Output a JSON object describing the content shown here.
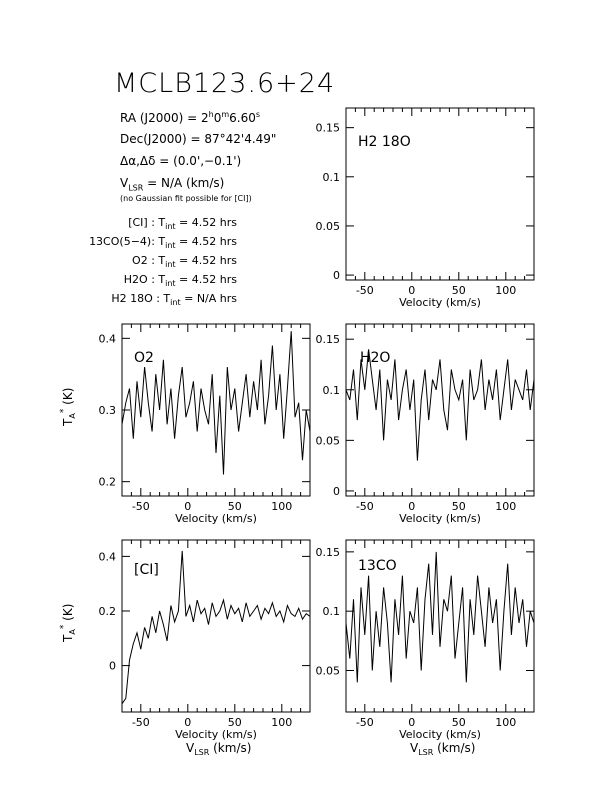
{
  "source_name": "MCLB123.6+24",
  "coords": {
    "ra_label": "RA (J2000)",
    "ra_h": "2",
    "ra_m": "0",
    "ra_s": "6.60",
    "dec_label": "Dec(J2000)",
    "dec_value": "87°42'4.49\"",
    "offset_label": "Δα,Δδ",
    "offset_value": "(0.0',−0.1')",
    "vlsr_value": "N/A  (km/s)",
    "vlsr_note": "(no Gaussian fit possible for [CI])"
  },
  "integration": {
    "rows": [
      {
        "line": "[CI]",
        "value": "4.52 hrs"
      },
      {
        "line": "13CO(5−4)",
        "value": "4.52 hrs"
      },
      {
        "line": "O2",
        "value": "4.52 hrs"
      },
      {
        "line": "H2O",
        "value": "4.52 hrs"
      },
      {
        "line": "H2 18O",
        "value": "N/A hrs"
      }
    ]
  },
  "axis_text": {
    "velocity": "Velocity (km/s)",
    "vlsr": "V",
    "vlsr_sub": "LSR",
    "vlsr_unit": "(km/s)",
    "ta": "T",
    "ta_sub": "A",
    "ta_sup": "*",
    "ta_unit": "(K)"
  },
  "chart_data": [
    {
      "panel": "H2 18O",
      "type": "line",
      "label": "H2 18O",
      "xlim": [
        -70,
        130
      ],
      "ylim": [
        -0.005,
        0.17
      ],
      "xticks": [
        -50,
        0,
        50,
        100
      ],
      "yticks": [
        0,
        0.05,
        0.1,
        0.15
      ],
      "ytick_labels": [
        "0",
        "0.05",
        "0.1",
        "0.15"
      ],
      "x": [],
      "y": []
    },
    {
      "panel": "O2",
      "type": "line",
      "label": "O2",
      "xlim": [
        -70,
        130
      ],
      "ylim": [
        0.18,
        0.42
      ],
      "xticks": [
        -50,
        0,
        50,
        100
      ],
      "yticks": [
        0.2,
        0.3,
        0.4
      ],
      "ytick_labels": [
        "0.2",
        "0.3",
        "0.4"
      ],
      "x": [
        -70,
        -66,
        -62,
        -58,
        -54,
        -50,
        -46,
        -42,
        -38,
        -34,
        -30,
        -26,
        -22,
        -18,
        -14,
        -10,
        -6,
        -2,
        2,
        6,
        10,
        14,
        18,
        22,
        26,
        30,
        34,
        38,
        42,
        46,
        50,
        54,
        58,
        62,
        66,
        70,
        74,
        78,
        82,
        86,
        90,
        94,
        98,
        102,
        106,
        110,
        114,
        118,
        122,
        126,
        130
      ],
      "y": [
        0.28,
        0.31,
        0.33,
        0.26,
        0.34,
        0.29,
        0.36,
        0.31,
        0.27,
        0.35,
        0.3,
        0.37,
        0.28,
        0.33,
        0.26,
        0.32,
        0.36,
        0.29,
        0.31,
        0.34,
        0.27,
        0.33,
        0.3,
        0.28,
        0.35,
        0.24,
        0.32,
        0.21,
        0.36,
        0.3,
        0.33,
        0.27,
        0.31,
        0.35,
        0.29,
        0.34,
        0.3,
        0.37,
        0.28,
        0.32,
        0.39,
        0.3,
        0.35,
        0.26,
        0.33,
        0.41,
        0.29,
        0.31,
        0.23,
        0.3,
        0.27
      ]
    },
    {
      "panel": "H2O",
      "type": "line",
      "label": "H2O",
      "xlim": [
        -70,
        130
      ],
      "ylim": [
        -0.005,
        0.165
      ],
      "xticks": [
        -50,
        0,
        50,
        100
      ],
      "yticks": [
        0,
        0.05,
        0.1,
        0.15
      ],
      "ytick_labels": [
        "0",
        "0.05",
        "0.1",
        "0.15"
      ],
      "x": [
        -70,
        -66,
        -62,
        -58,
        -54,
        -50,
        -46,
        -42,
        -38,
        -34,
        -30,
        -26,
        -22,
        -18,
        -14,
        -10,
        -6,
        -2,
        2,
        6,
        10,
        14,
        18,
        22,
        26,
        30,
        34,
        38,
        42,
        46,
        50,
        54,
        58,
        62,
        66,
        70,
        74,
        78,
        82,
        86,
        90,
        94,
        98,
        102,
        106,
        110,
        114,
        118,
        122,
        126,
        130
      ],
      "y": [
        0.1,
        0.09,
        0.12,
        0.07,
        0.13,
        0.1,
        0.14,
        0.11,
        0.08,
        0.12,
        0.05,
        0.11,
        0.09,
        0.13,
        0.07,
        0.1,
        0.12,
        0.08,
        0.11,
        0.03,
        0.09,
        0.12,
        0.07,
        0.11,
        0.1,
        0.13,
        0.08,
        0.06,
        0.12,
        0.1,
        0.09,
        0.11,
        0.05,
        0.12,
        0.09,
        0.1,
        0.13,
        0.08,
        0.11,
        0.09,
        0.12,
        0.07,
        0.1,
        0.13,
        0.08,
        0.11,
        0.1,
        0.09,
        0.12,
        0.08,
        0.11
      ]
    },
    {
      "panel": "[CI]",
      "type": "line",
      "label": "[CI]",
      "xlim": [
        -70,
        130
      ],
      "ylim": [
        -0.17,
        0.46
      ],
      "xticks": [
        -50,
        0,
        50,
        100
      ],
      "yticks": [
        0,
        0.2,
        0.4
      ],
      "ytick_labels": [
        "0",
        "0.2",
        "0.4"
      ],
      "x": [
        -70,
        -66,
        -62,
        -58,
        -54,
        -50,
        -46,
        -42,
        -38,
        -34,
        -30,
        -26,
        -22,
        -18,
        -14,
        -10,
        -6,
        -2,
        2,
        6,
        10,
        14,
        18,
        22,
        26,
        30,
        34,
        38,
        42,
        46,
        50,
        54,
        58,
        62,
        66,
        70,
        74,
        78,
        82,
        86,
        90,
        94,
        98,
        102,
        106,
        110,
        114,
        118,
        122,
        126,
        130
      ],
      "y": [
        -0.14,
        -0.12,
        0.02,
        0.08,
        0.12,
        0.06,
        0.14,
        0.1,
        0.18,
        0.12,
        0.2,
        0.15,
        0.09,
        0.22,
        0.16,
        0.2,
        0.42,
        0.18,
        0.22,
        0.16,
        0.24,
        0.19,
        0.21,
        0.15,
        0.23,
        0.18,
        0.2,
        0.24,
        0.17,
        0.22,
        0.19,
        0.21,
        0.16,
        0.23,
        0.18,
        0.2,
        0.22,
        0.17,
        0.21,
        0.19,
        0.23,
        0.18,
        0.2,
        0.16,
        0.22,
        0.19,
        0.18,
        0.21,
        0.17,
        0.19,
        0.18
      ]
    },
    {
      "panel": "13CO",
      "type": "line",
      "label": "13CO",
      "xlim": [
        -70,
        130
      ],
      "ylim": [
        0.015,
        0.16
      ],
      "xticks": [
        -50,
        0,
        50,
        100
      ],
      "yticks": [
        0.05,
        0.1,
        0.15
      ],
      "ytick_labels": [
        "0.05",
        "0.1",
        "0.15"
      ],
      "x": [
        -70,
        -66,
        -62,
        -58,
        -54,
        -50,
        -46,
        -42,
        -38,
        -34,
        -30,
        -26,
        -22,
        -18,
        -14,
        -10,
        -6,
        -2,
        2,
        6,
        10,
        14,
        18,
        22,
        26,
        30,
        34,
        38,
        42,
        46,
        50,
        54,
        58,
        62,
        66,
        70,
        74,
        78,
        82,
        86,
        90,
        94,
        98,
        102,
        106,
        110,
        114,
        118,
        122,
        126,
        130
      ],
      "y": [
        0.09,
        0.06,
        0.11,
        0.04,
        0.12,
        0.08,
        0.13,
        0.05,
        0.1,
        0.07,
        0.12,
        0.09,
        0.04,
        0.11,
        0.08,
        0.13,
        0.06,
        0.1,
        0.09,
        0.12,
        0.05,
        0.11,
        0.14,
        0.08,
        0.15,
        0.07,
        0.11,
        0.1,
        0.13,
        0.06,
        0.09,
        0.12,
        0.04,
        0.11,
        0.08,
        0.13,
        0.1,
        0.07,
        0.12,
        0.09,
        0.11,
        0.05,
        0.1,
        0.14,
        0.08,
        0.12,
        0.09,
        0.11,
        0.07,
        0.1,
        0.09
      ]
    }
  ]
}
